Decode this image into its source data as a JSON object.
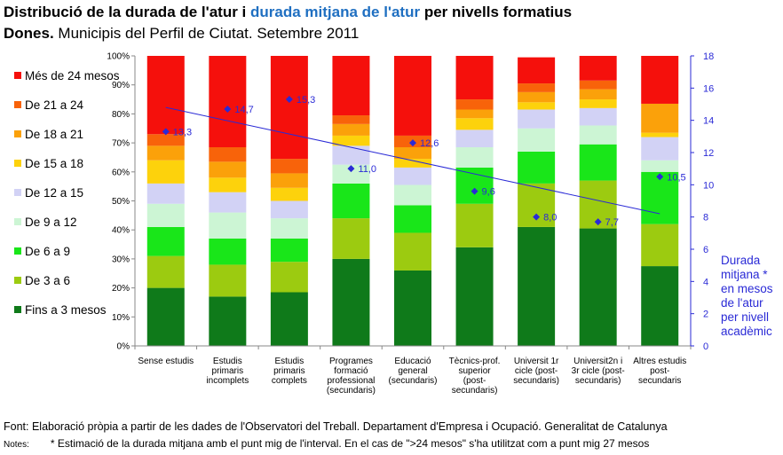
{
  "header": {
    "title_part1": "Distribució de la durada de l'atur i ",
    "title_highlight": "durada mitjana de l'atur",
    "title_part2": " per nivells formatius",
    "subtitle_bold": "Dones.",
    "subtitle_rest": " Municipis del Perfil de Ciutat. Setembre 2011"
  },
  "colors": {
    "Fins a 3 mesos": "#0f7a1a",
    "De 3 a 6": "#9ccb10",
    "De 6 a 9": "#19e619",
    "De 9 a 12": "#ccf5d4",
    "De 12 a 15": "#d2d2f5",
    "De 15 a 18": "#fdd20c",
    "De 18 a 21": "#fba10a",
    "De 21 a 24": "#f8630a",
    "Més de 24 mesos": "#f5100c",
    "average_line": "#2a2ad6"
  },
  "chart_data": {
    "type": "bar",
    "stacked": true,
    "percent_stacked": true,
    "categories": [
      "Sense estudis",
      "Estudis primaris incomplets",
      "Estudis primaris complets",
      "Programes formació professional (secundaris)",
      "Educació general (secundaris)",
      "Tècnics-prof. superior (post-secundaris)",
      "Universit 1r cicle (post-secundaris)",
      "Universit2n i 3r cicle (post-secundaris)",
      "Altres estudis post-secundaris"
    ],
    "category_lines": [
      [
        "Sense estudis"
      ],
      [
        "Estudis",
        "primaris",
        "incomplets"
      ],
      [
        "Estudis",
        "primaris",
        "complets"
      ],
      [
        "Programes",
        "formació",
        "professional",
        "(secundaris)"
      ],
      [
        "Educació",
        "general",
        "(secundaris)"
      ],
      [
        "Tècnics-prof.",
        "superior",
        "(post-",
        "secundaris)"
      ],
      [
        "Universit 1r",
        "cicle (post-",
        "secundaris)"
      ],
      [
        "Universit2n i",
        "3r cicle (post-",
        "secundaris)"
      ],
      [
        "Altres estudis",
        "post-",
        "secundaris"
      ]
    ],
    "series": [
      {
        "name": "Fins a 3 mesos",
        "values": [
          20,
          17,
          18.5,
          30,
          26,
          34,
          41,
          40.5,
          27.5
        ]
      },
      {
        "name": "De 3 a 6",
        "values": [
          11,
          11,
          10.5,
          14,
          13,
          15,
          15,
          16.5,
          14.5
        ]
      },
      {
        "name": "De 6 a 9",
        "values": [
          10,
          9,
          8,
          12,
          9.5,
          12.5,
          11,
          12.5,
          18
        ]
      },
      {
        "name": "De 9 a 12",
        "values": [
          8,
          9,
          7,
          6.5,
          7,
          7,
          8,
          6.5,
          4
        ]
      },
      {
        "name": "De 12 a 15",
        "values": [
          7,
          7,
          6,
          6.5,
          6,
          6,
          6.5,
          6,
          8
        ]
      },
      {
        "name": "De 15 a 18",
        "values": [
          8,
          5,
          4.5,
          3.5,
          3,
          4,
          2.5,
          3,
          1.5
        ]
      },
      {
        "name": "De 18 a 21",
        "values": [
          5,
          5.5,
          5,
          4,
          4,
          3,
          3.5,
          3.5,
          10
        ]
      },
      {
        "name": "De 21 a 24",
        "values": [
          4,
          5,
          5,
          3,
          4,
          3.5,
          3,
          3,
          0
        ]
      },
      {
        "name": "Més de 24 mesos",
        "values": [
          27,
          31.5,
          35.5,
          20.5,
          27.5,
          15,
          9,
          8.5,
          16.5
        ]
      }
    ],
    "average_duration": {
      "name": "Durada mitjana",
      "values": [
        13.3,
        14.7,
        15.3,
        11.0,
        12.6,
        9.6,
        8.0,
        7.7,
        10.5
      ],
      "labels": [
        "13,3",
        "14,7",
        "15,3",
        "11,0",
        "12,6",
        "9,6",
        "8,0",
        "7,7",
        "10,5"
      ]
    },
    "trendline": {
      "start": 14.8,
      "end": 8.2
    },
    "y_left": {
      "ticks": [
        "0%",
        "10%",
        "20%",
        "30%",
        "40%",
        "50%",
        "60%",
        "70%",
        "80%",
        "90%",
        "100%"
      ],
      "lim": [
        0,
        100
      ]
    },
    "y_right": {
      "ticks": [
        "0",
        "2",
        "4",
        "6",
        "8",
        "10",
        "12",
        "14",
        "16",
        "18"
      ],
      "lim": [
        0,
        18
      ]
    },
    "legend_order": [
      "Més de 24 mesos",
      "De 21 a 24",
      "De 18 a 21",
      "De 15 a 18",
      "De 12 a 15",
      "De 9 a 12",
      "De 6 a 9",
      "De 3 a 6",
      "Fins a 3 mesos"
    ],
    "legend_labels": [
      "Més de 24 mesos",
      "De 21 a 24",
      "De 18 a 21",
      "De 15 a 18",
      "De 12 a 15",
      "De 9 a 12",
      "De 6 a 9",
      "De 3 a 6",
      "Fins a 3 mesos"
    ],
    "legend_position": "left",
    "y2_title": "Durada mitjana * en mesos de l'atur per nivell acadèmic"
  },
  "footer": {
    "source": "Font: Elaboració pròpia a partir de les dades de l'Observatori del Treball. Departament d'Empresa i Ocupació. Generalitat de Catalunya",
    "notes_label": "Notes:",
    "notes_text": "* Estimació de la durada mitjana amb el punt mig de l'interval. En el cas de \">24 mesos\" s'ha utilitzat com a punt mig 27 mesos"
  }
}
